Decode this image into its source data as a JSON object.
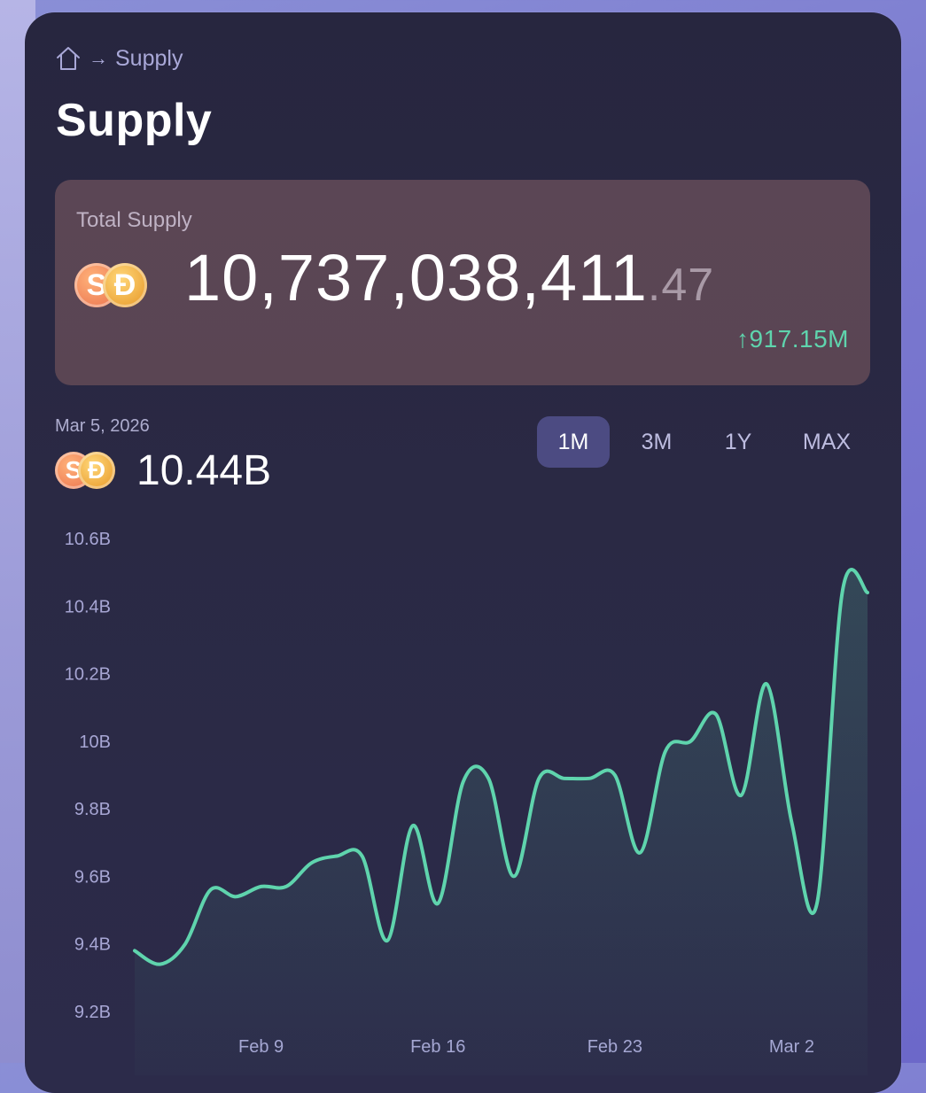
{
  "breadcrumb": {
    "current": "Supply"
  },
  "page_title": "Supply",
  "total_supply": {
    "label": "Total Supply",
    "value_main": "10,737,038,411",
    "value_decimal": ".47",
    "change": "917.15M",
    "change_color": "#5fd4ad"
  },
  "selected": {
    "date": "Mar 5, 2026",
    "value": "10.44B"
  },
  "range_tabs": [
    {
      "label": "1M",
      "active": true
    },
    {
      "label": "3M",
      "active": false
    },
    {
      "label": "1Y",
      "active": false
    },
    {
      "label": "MAX",
      "active": false
    }
  ],
  "icons": [
    "home-icon",
    "arrow-right-icon",
    "sky-dollar-coin-icon",
    "dai-coin-icon",
    "arrow-up-icon"
  ],
  "colors": {
    "line": "#5fd4ad",
    "accent_tab": "#4c4b82"
  },
  "chart_data": {
    "type": "area",
    "x": [
      "Feb 4",
      "Feb 5",
      "Feb 6",
      "Feb 7",
      "Feb 8",
      "Feb 9",
      "Feb 10",
      "Feb 11",
      "Feb 12",
      "Feb 13",
      "Feb 14",
      "Feb 15",
      "Feb 16",
      "Feb 17",
      "Feb 18",
      "Feb 19",
      "Feb 20",
      "Feb 21",
      "Feb 22",
      "Feb 23",
      "Feb 24",
      "Feb 25",
      "Feb 26",
      "Feb 27",
      "Feb 28",
      "Mar 1",
      "Mar 2",
      "Mar 3",
      "Mar 4",
      "Mar 5"
    ],
    "series": [
      {
        "values": [
          9.38,
          9.34,
          9.4,
          9.56,
          9.54,
          9.57,
          9.57,
          9.64,
          9.66,
          9.66,
          9.41,
          9.75,
          9.52,
          9.88,
          9.89,
          9.6,
          9.89,
          9.89,
          9.89,
          9.9,
          9.67,
          9.97,
          10.0,
          10.08,
          9.84,
          10.17,
          9.76,
          9.52,
          10.44,
          10.44
        ]
      }
    ],
    "y_ticks": [
      "10.6B",
      "10.4B",
      "10.2B",
      "10B",
      "9.8B",
      "9.6B",
      "9.4B",
      "9.2B"
    ],
    "x_ticks": [
      "Feb 9",
      "Feb 16",
      "Feb 23",
      "Mar 2"
    ],
    "ylim": [
      9.2,
      10.6
    ],
    "grid": false
  }
}
